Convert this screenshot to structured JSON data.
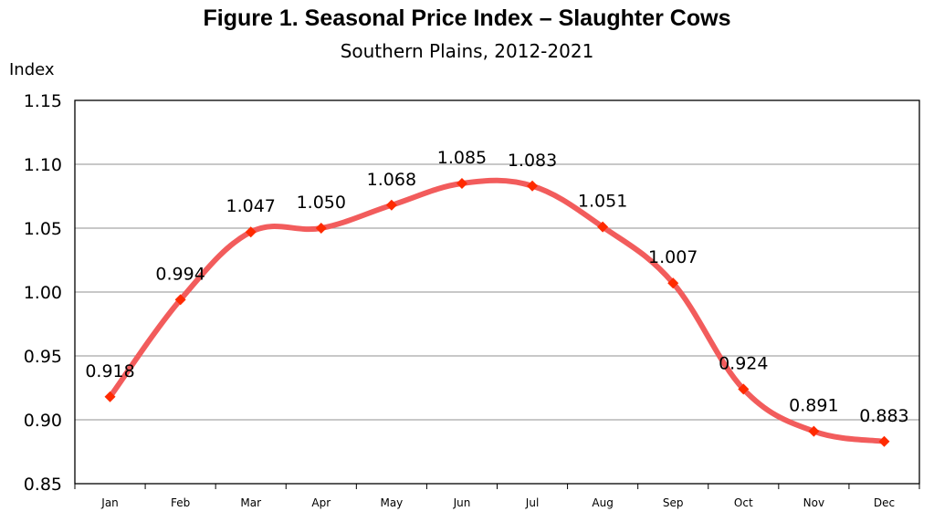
{
  "chart_data": {
    "type": "line",
    "title": "Figure 1. Seasonal Price Index – Slaughter Cows",
    "subtitle": "Southern Plains, 2012-2021",
    "ylabel": "Index",
    "xlabel": "",
    "categories": [
      "Jan",
      "Feb",
      "Mar",
      "Apr",
      "May",
      "Jun",
      "Jul",
      "Aug",
      "Sep",
      "Oct",
      "Nov",
      "Dec"
    ],
    "values": [
      0.918,
      0.994,
      1.047,
      1.05,
      1.068,
      1.085,
      1.083,
      1.051,
      1.007,
      0.924,
      0.891,
      0.883
    ],
    "data_labels": [
      "0.918",
      "0.994",
      "1.047",
      "1.050",
      "1.068",
      "1.085",
      "1.083",
      "1.051",
      "1.007",
      "0.924",
      "0.891",
      "0.883"
    ],
    "ylim": [
      0.85,
      1.15
    ],
    "yticks": [
      "0.85",
      "0.90",
      "0.95",
      "1.00",
      "1.05",
      "1.10",
      "1.15"
    ],
    "grid": true,
    "legend": "none",
    "line_color": "#f25c5c",
    "marker_color": "#ff2a00"
  }
}
